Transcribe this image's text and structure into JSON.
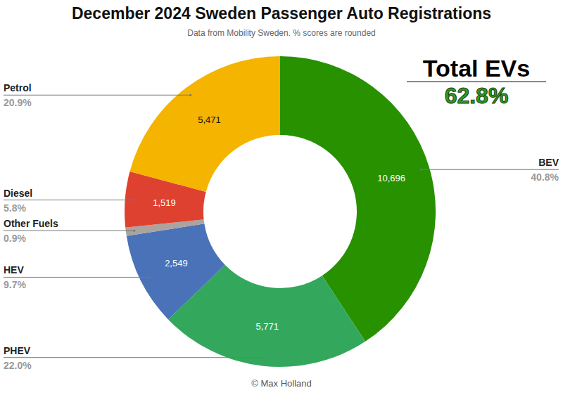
{
  "chart_data": {
    "type": "pie",
    "title": "December 2024 Sweden Passenger Auto Registrations",
    "subtitle": "Data from Mobility Sweden. % scores are rounded",
    "categories": [
      "BEV",
      "PHEV",
      "HEV",
      "Other Fuels",
      "Diesel",
      "Petrol"
    ],
    "values": [
      10696,
      5771,
      2549,
      230,
      1519,
      5471
    ],
    "value_labels": [
      "10,696",
      "5,771",
      "2,549",
      null,
      "1,519",
      "5,471"
    ],
    "percentage_labels": [
      "40.8%",
      "22.0%",
      "9.7%",
      "0.9%",
      "5.8%",
      "20.9%"
    ],
    "colors": [
      "#279100",
      "#33a85c",
      "#4a72b8",
      "#aba39d",
      "#df4130",
      "#f4b400"
    ],
    "data_labels": true,
    "annotation": {
      "label": "Total EVs",
      "value_label": "62.8%"
    },
    "credit": "© Max Holland"
  }
}
